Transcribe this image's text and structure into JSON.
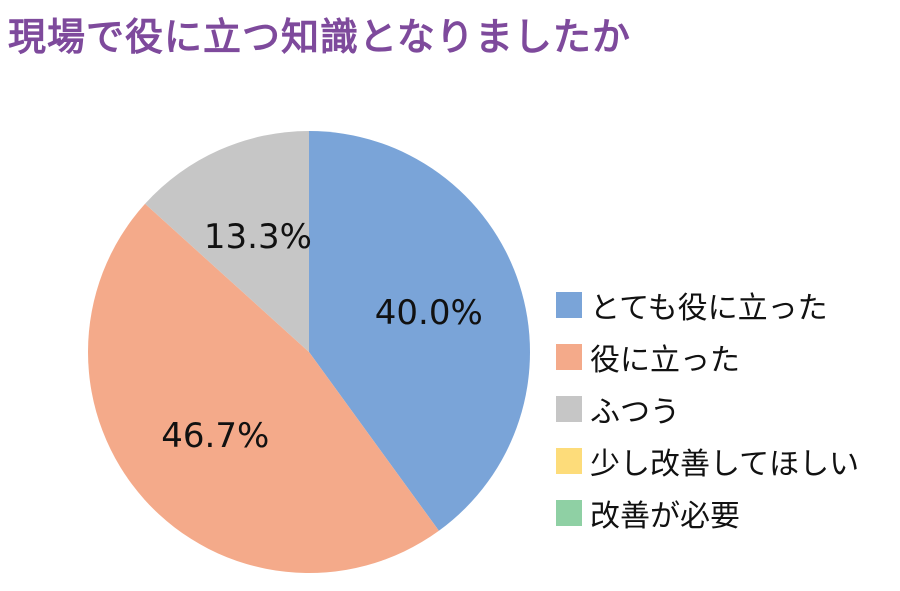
{
  "chart_data": {
    "type": "pie",
    "title": "現場で役に立つ知識となりましたか",
    "categories": [
      "とても役に立った",
      "役に立った",
      "ふつう",
      "少し改善してほしい",
      "改善が必要"
    ],
    "values": [
      40.0,
      46.7,
      13.3,
      0,
      0
    ],
    "data_labels": [
      "40.0%",
      "46.7%",
      "13.3%",
      "",
      ""
    ],
    "colors": [
      "#7aa4d8",
      "#f4aa8a",
      "#c6c6c6",
      "#fddc7a",
      "#8fd0a4"
    ],
    "legend_position": "right",
    "start": "top",
    "direction": "clockwise"
  }
}
